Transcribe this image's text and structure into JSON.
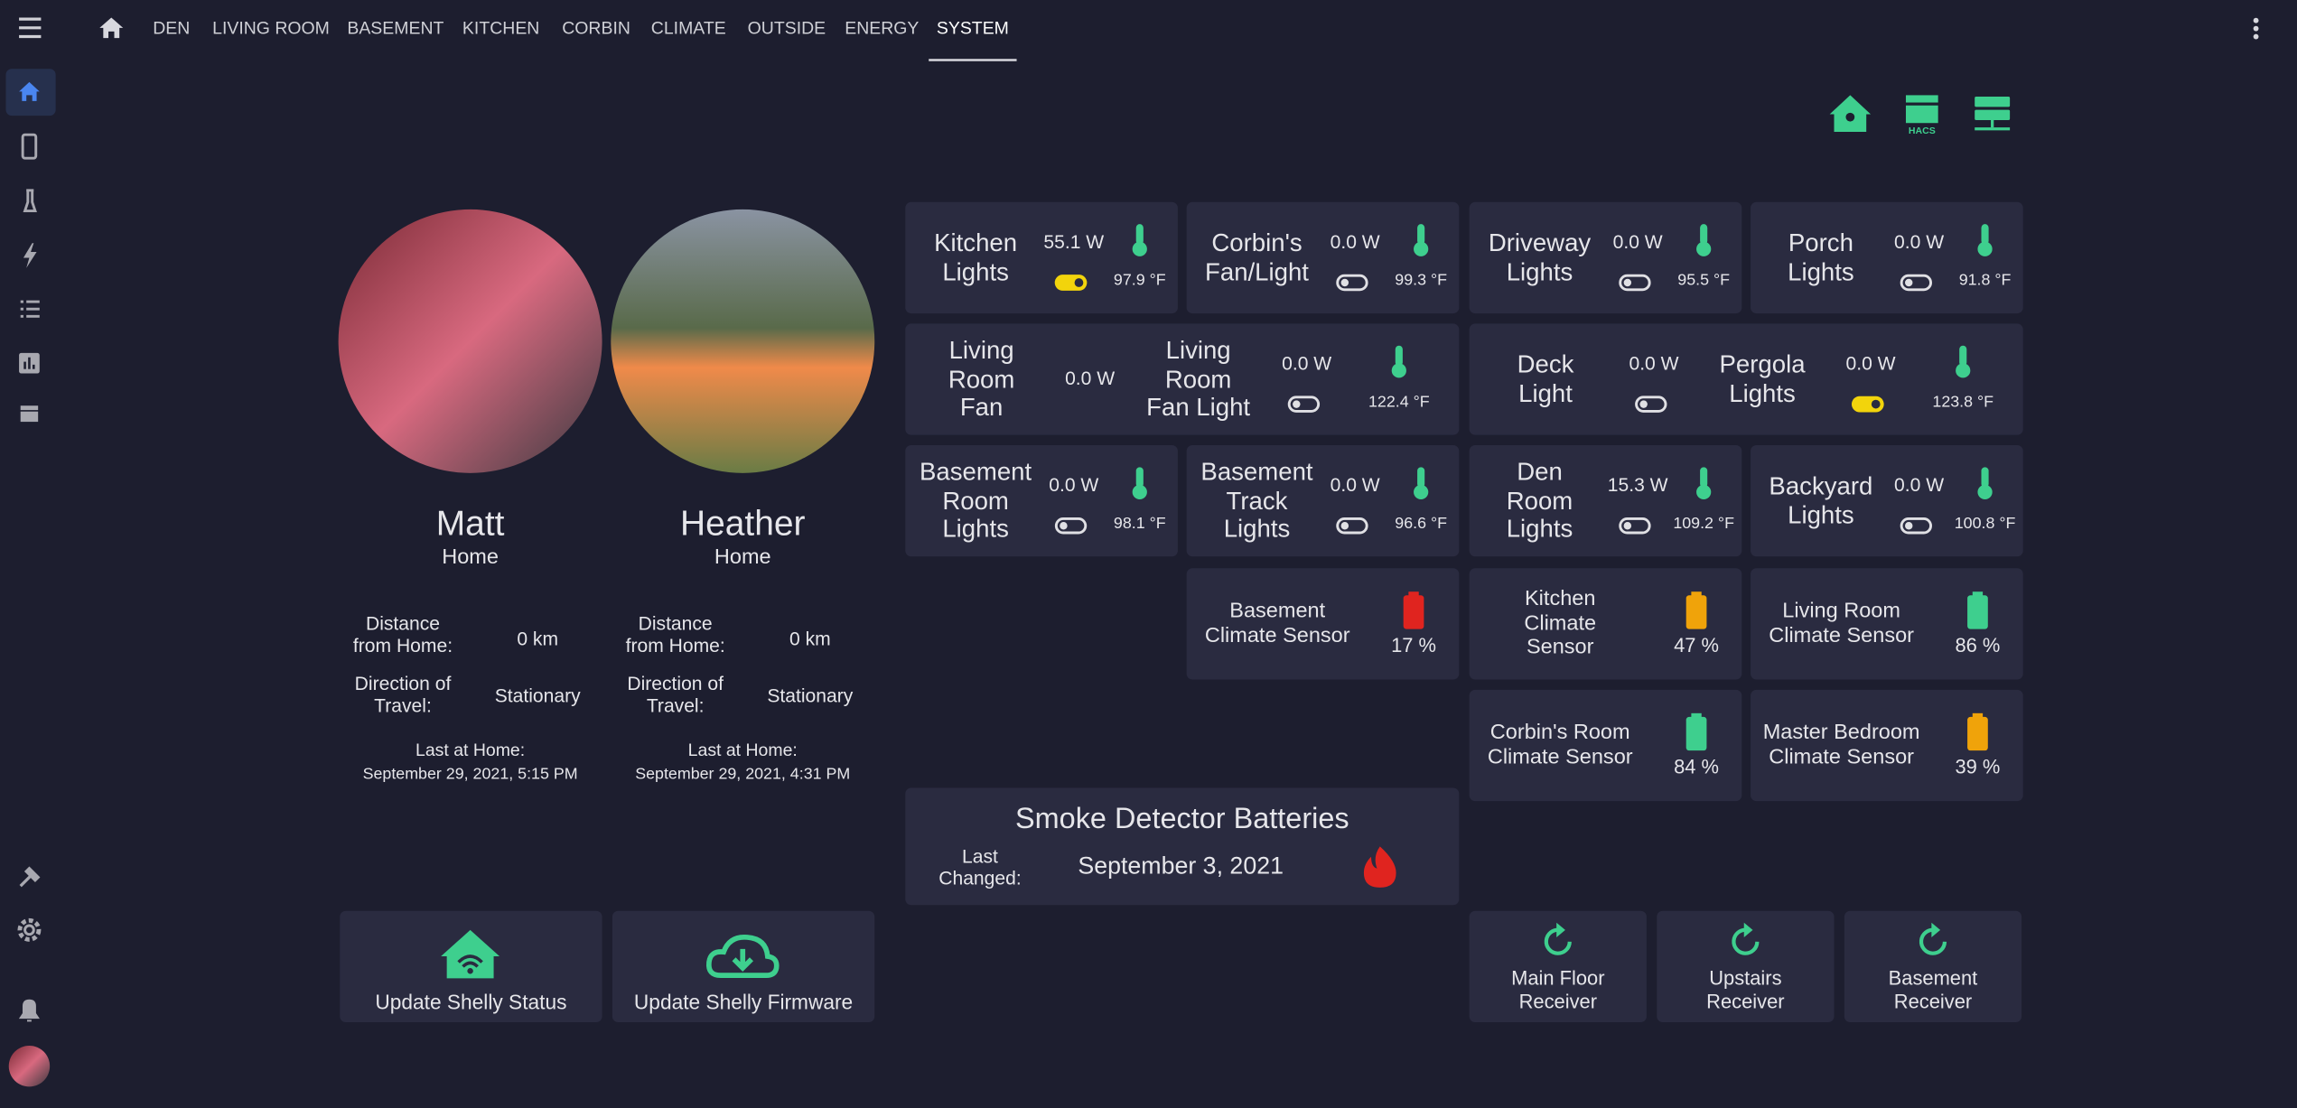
{
  "nav": {
    "tabs": [
      "DEN",
      "LIVING ROOM",
      "BASEMENT",
      "KITCHEN",
      "CORBIN",
      "CLIMATE",
      "OUTSIDE",
      "ENERGY",
      "SYSTEM"
    ],
    "active": 8
  },
  "top_icons": {
    "hacs_label": "HACS"
  },
  "persons": [
    {
      "name": "Matt",
      "state": "Home",
      "distance_label": "Distance from Home:",
      "distance": "0 km",
      "direction_label": "Direction of Travel:",
      "direction": "Stationary",
      "last_label": "Last at Home:",
      "last_seen": "September 29, 2021, 5:15 PM"
    },
    {
      "name": "Heather",
      "state": "Home",
      "distance_label": "Distance from Home:",
      "distance": "0 km",
      "direction_label": "Direction of Travel:",
      "direction": "Stationary",
      "last_label": "Last at Home:",
      "last_seen": "September 29, 2021, 4:31 PM"
    }
  ],
  "light_tiles": [
    {
      "items": [
        {
          "name": "Kitchen Lights",
          "power": "55.1 W",
          "switch": "on"
        }
      ],
      "temperature": "97.9 °F"
    },
    {
      "items": [
        {
          "name": "Corbin's Fan/Light",
          "power": "0.0 W",
          "switch": "off"
        }
      ],
      "temperature": "99.3 °F"
    },
    {
      "items": [
        {
          "name": "Driveway Lights",
          "power": "0.0 W",
          "switch": "off"
        }
      ],
      "temperature": "95.5 °F"
    },
    {
      "items": [
        {
          "name": "Porch Lights",
          "power": "0.0 W",
          "switch": "off"
        }
      ],
      "temperature": "91.8 °F"
    },
    {
      "items": [
        {
          "name": "Living Room Fan",
          "power": "0.0 W"
        },
        {
          "name": "Living Room Fan Light",
          "power": "0.0 W",
          "switch": "off"
        }
      ],
      "temperature": "122.4 °F"
    },
    {
      "items": [
        {
          "name": "Deck Light",
          "power": "0.0 W",
          "switch": "off"
        },
        {
          "name": "Pergola Lights",
          "power": "0.0 W",
          "switch": "on"
        }
      ],
      "temperature": "123.8 °F"
    },
    {
      "items": [
        {
          "name": "Basement Room Lights",
          "power": "0.0 W",
          "switch": "off"
        }
      ],
      "temperature": "98.1 °F"
    },
    {
      "items": [
        {
          "name": "Basement Track Lights",
          "power": "0.0 W",
          "switch": "off"
        }
      ],
      "temperature": "96.6 °F"
    },
    {
      "items": [
        {
          "name": "Den Room Lights",
          "power": "15.3 W",
          "switch": "off"
        }
      ],
      "temperature": "109.2 °F"
    },
    {
      "items": [
        {
          "name": "Backyard Lights",
          "power": "0.0 W",
          "switch": "off"
        }
      ],
      "temperature": "100.8 °F"
    }
  ],
  "climate_sensors": [
    {
      "name": "Basement Climate Sensor",
      "battery": "17 %",
      "color": "#e0241f"
    },
    {
      "name": "Kitchen Climate Sensor",
      "battery": "47 %",
      "color": "#f0a30a"
    },
    {
      "name": "Living Room Climate Sensor",
      "battery": "86 %",
      "color": "#3ecf8e"
    },
    {
      "name": "Corbin's Room Climate Sensor",
      "battery": "84 %",
      "color": "#3ecf8e"
    },
    {
      "name": "Master Bedroom Climate Sensor",
      "battery": "39 %",
      "color": "#f0a30a"
    }
  ],
  "smoke": {
    "title": "Smoke Detector Batteries",
    "label": "Last Changed:",
    "date": "September 3, 2021"
  },
  "buttons": [
    "Update Shelly Status",
    "Update Shelly Firmware"
  ],
  "receivers": [
    "Main Floor Receiver",
    "Upstairs Receiver",
    "Basement Receiver"
  ]
}
